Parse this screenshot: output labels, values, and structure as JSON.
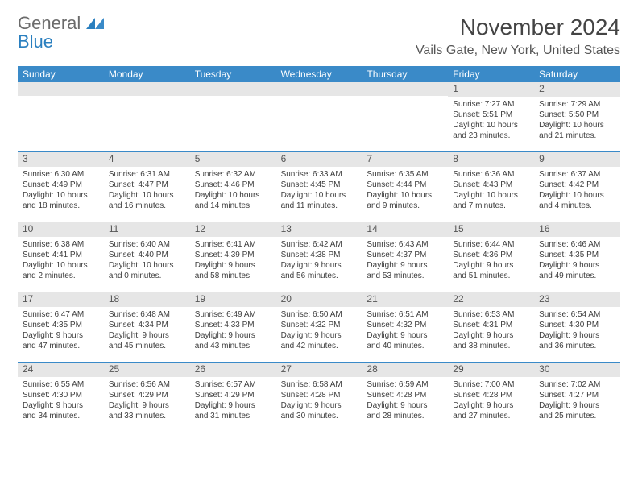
{
  "logo": {
    "general": "General",
    "blue": "Blue"
  },
  "title": "November 2024",
  "location": "Vails Gate, New York, United States",
  "header_bg": "#3a8ac8",
  "header_fg": "#ffffff",
  "week_border": "#3a8ac8",
  "daynum_bg": "#e6e6e6",
  "text_color": "#3d3d3d",
  "day_names": [
    "Sunday",
    "Monday",
    "Tuesday",
    "Wednesday",
    "Thursday",
    "Friday",
    "Saturday"
  ],
  "weeks": [
    [
      null,
      null,
      null,
      null,
      null,
      {
        "n": "1",
        "sunrise": "7:27 AM",
        "sunset": "5:51 PM",
        "dl1": "Daylight: 10 hours",
        "dl2": "and 23 minutes."
      },
      {
        "n": "2",
        "sunrise": "7:29 AM",
        "sunset": "5:50 PM",
        "dl1": "Daylight: 10 hours",
        "dl2": "and 21 minutes."
      }
    ],
    [
      {
        "n": "3",
        "sunrise": "6:30 AM",
        "sunset": "4:49 PM",
        "dl1": "Daylight: 10 hours",
        "dl2": "and 18 minutes."
      },
      {
        "n": "4",
        "sunrise": "6:31 AM",
        "sunset": "4:47 PM",
        "dl1": "Daylight: 10 hours",
        "dl2": "and 16 minutes."
      },
      {
        "n": "5",
        "sunrise": "6:32 AM",
        "sunset": "4:46 PM",
        "dl1": "Daylight: 10 hours",
        "dl2": "and 14 minutes."
      },
      {
        "n": "6",
        "sunrise": "6:33 AM",
        "sunset": "4:45 PM",
        "dl1": "Daylight: 10 hours",
        "dl2": "and 11 minutes."
      },
      {
        "n": "7",
        "sunrise": "6:35 AM",
        "sunset": "4:44 PM",
        "dl1": "Daylight: 10 hours",
        "dl2": "and 9 minutes."
      },
      {
        "n": "8",
        "sunrise": "6:36 AM",
        "sunset": "4:43 PM",
        "dl1": "Daylight: 10 hours",
        "dl2": "and 7 minutes."
      },
      {
        "n": "9",
        "sunrise": "6:37 AM",
        "sunset": "4:42 PM",
        "dl1": "Daylight: 10 hours",
        "dl2": "and 4 minutes."
      }
    ],
    [
      {
        "n": "10",
        "sunrise": "6:38 AM",
        "sunset": "4:41 PM",
        "dl1": "Daylight: 10 hours",
        "dl2": "and 2 minutes."
      },
      {
        "n": "11",
        "sunrise": "6:40 AM",
        "sunset": "4:40 PM",
        "dl1": "Daylight: 10 hours",
        "dl2": "and 0 minutes."
      },
      {
        "n": "12",
        "sunrise": "6:41 AM",
        "sunset": "4:39 PM",
        "dl1": "Daylight: 9 hours",
        "dl2": "and 58 minutes."
      },
      {
        "n": "13",
        "sunrise": "6:42 AM",
        "sunset": "4:38 PM",
        "dl1": "Daylight: 9 hours",
        "dl2": "and 56 minutes."
      },
      {
        "n": "14",
        "sunrise": "6:43 AM",
        "sunset": "4:37 PM",
        "dl1": "Daylight: 9 hours",
        "dl2": "and 53 minutes."
      },
      {
        "n": "15",
        "sunrise": "6:44 AM",
        "sunset": "4:36 PM",
        "dl1": "Daylight: 9 hours",
        "dl2": "and 51 minutes."
      },
      {
        "n": "16",
        "sunrise": "6:46 AM",
        "sunset": "4:35 PM",
        "dl1": "Daylight: 9 hours",
        "dl2": "and 49 minutes."
      }
    ],
    [
      {
        "n": "17",
        "sunrise": "6:47 AM",
        "sunset": "4:35 PM",
        "dl1": "Daylight: 9 hours",
        "dl2": "and 47 minutes."
      },
      {
        "n": "18",
        "sunrise": "6:48 AM",
        "sunset": "4:34 PM",
        "dl1": "Daylight: 9 hours",
        "dl2": "and 45 minutes."
      },
      {
        "n": "19",
        "sunrise": "6:49 AM",
        "sunset": "4:33 PM",
        "dl1": "Daylight: 9 hours",
        "dl2": "and 43 minutes."
      },
      {
        "n": "20",
        "sunrise": "6:50 AM",
        "sunset": "4:32 PM",
        "dl1": "Daylight: 9 hours",
        "dl2": "and 42 minutes."
      },
      {
        "n": "21",
        "sunrise": "6:51 AM",
        "sunset": "4:32 PM",
        "dl1": "Daylight: 9 hours",
        "dl2": "and 40 minutes."
      },
      {
        "n": "22",
        "sunrise": "6:53 AM",
        "sunset": "4:31 PM",
        "dl1": "Daylight: 9 hours",
        "dl2": "and 38 minutes."
      },
      {
        "n": "23",
        "sunrise": "6:54 AM",
        "sunset": "4:30 PM",
        "dl1": "Daylight: 9 hours",
        "dl2": "and 36 minutes."
      }
    ],
    [
      {
        "n": "24",
        "sunrise": "6:55 AM",
        "sunset": "4:30 PM",
        "dl1": "Daylight: 9 hours",
        "dl2": "and 34 minutes."
      },
      {
        "n": "25",
        "sunrise": "6:56 AM",
        "sunset": "4:29 PM",
        "dl1": "Daylight: 9 hours",
        "dl2": "and 33 minutes."
      },
      {
        "n": "26",
        "sunrise": "6:57 AM",
        "sunset": "4:29 PM",
        "dl1": "Daylight: 9 hours",
        "dl2": "and 31 minutes."
      },
      {
        "n": "27",
        "sunrise": "6:58 AM",
        "sunset": "4:28 PM",
        "dl1": "Daylight: 9 hours",
        "dl2": "and 30 minutes."
      },
      {
        "n": "28",
        "sunrise": "6:59 AM",
        "sunset": "4:28 PM",
        "dl1": "Daylight: 9 hours",
        "dl2": "and 28 minutes."
      },
      {
        "n": "29",
        "sunrise": "7:00 AM",
        "sunset": "4:28 PM",
        "dl1": "Daylight: 9 hours",
        "dl2": "and 27 minutes."
      },
      {
        "n": "30",
        "sunrise": "7:02 AM",
        "sunset": "4:27 PM",
        "dl1": "Daylight: 9 hours",
        "dl2": "and 25 minutes."
      }
    ]
  ]
}
